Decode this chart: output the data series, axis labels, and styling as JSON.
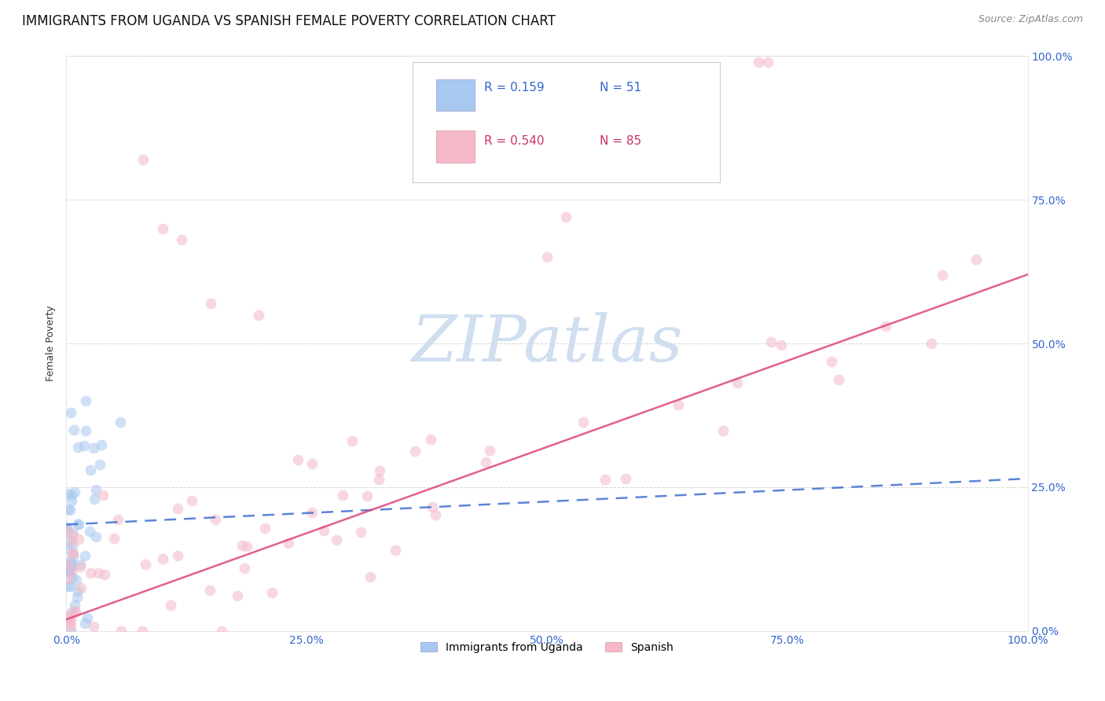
{
  "title": "IMMIGRANTS FROM UGANDA VS SPANISH FEMALE POVERTY CORRELATION CHART",
  "source": "Source: ZipAtlas.com",
  "ylabel_label": "Female Poverty",
  "legend_entries": [
    {
      "label": "Immigrants from Uganda",
      "R": "0.159",
      "N": "51",
      "color": "#a8c8f0"
    },
    {
      "label": "Spanish",
      "R": "0.540",
      "N": "85",
      "color": "#f4b8c8"
    }
  ],
  "watermark": "ZIPatlas",
  "scatter_size": 100,
  "scatter_alpha": 0.55,
  "blue_color": "#a8c8f0",
  "pink_color": "#f4b8c8",
  "blue_line_color": "#3366cc",
  "pink_line_color": "#dd4477",
  "background_color": "#ffffff",
  "grid_color": "#cccccc",
  "title_fontsize": 12,
  "axis_label_fontsize": 9,
  "tick_fontsize": 10,
  "source_fontsize": 9,
  "watermark_color": "#d0dff0",
  "watermark_fontsize": 60,
  "blue_line_intercept": 0.185,
  "blue_line_slope": 0.08,
  "pink_line_intercept": 0.02,
  "pink_line_slope": 0.6
}
